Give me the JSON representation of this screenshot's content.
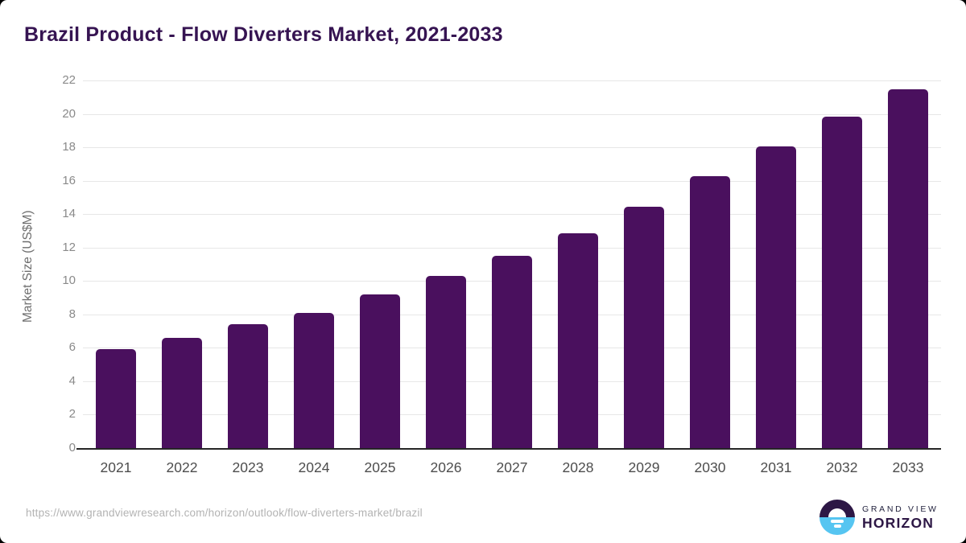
{
  "title": "Brazil Product - Flow Diverters Market, 2021-2033",
  "footer": {
    "source_url": "https://www.grandviewresearch.com/horizon/outlook/flow-diverters-market/brazil"
  },
  "logo": {
    "top_text": "GRAND VIEW",
    "bottom_text": "HORIZON"
  },
  "colors": {
    "bar": "#4a105e",
    "title_text": "#361452",
    "gridline": "#e7e7e7",
    "axis_line": "#262626",
    "y_tick_text": "#8a8a8a",
    "x_label_text": "#4d4d4d",
    "url_text": "#b3b3b3",
    "logo_dark_purple": "#2d1745",
    "logo_light_blue": "#56c5f1"
  },
  "chart_data": {
    "type": "bar",
    "title": "Brazil Product - Flow Diverters Market, 2021-2033",
    "categories": [
      "2021",
      "2022",
      "2023",
      "2024",
      "2025",
      "2026",
      "2027",
      "2028",
      "2029",
      "2030",
      "2031",
      "2032",
      "2033"
    ],
    "values": [
      5.9,
      6.6,
      7.4,
      8.1,
      9.2,
      10.3,
      11.5,
      12.85,
      14.45,
      16.25,
      18.05,
      19.85,
      21.45
    ],
    "xlabel": "",
    "ylabel": "Market Size (US$M)",
    "ylim": [
      0,
      22
    ],
    "yticks": [
      0,
      2,
      4,
      6,
      8,
      10,
      12,
      14,
      16,
      18,
      20,
      22
    ],
    "grid": true,
    "legend": false,
    "bar_color": "#4a105e"
  }
}
